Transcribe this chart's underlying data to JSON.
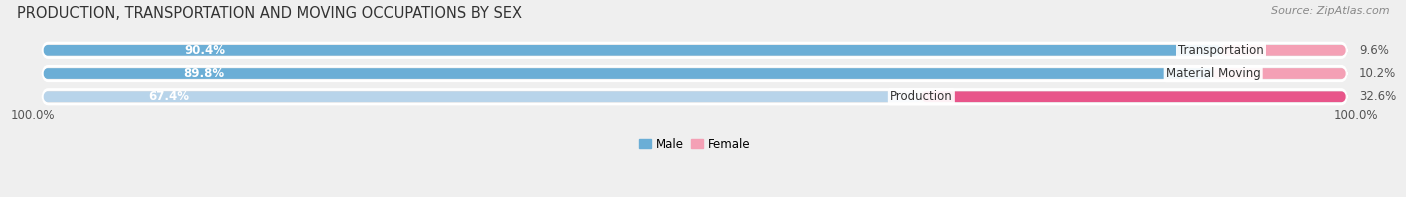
{
  "title": "PRODUCTION, TRANSPORTATION AND MOVING OCCUPATIONS BY SEX",
  "source": "Source: ZipAtlas.com",
  "categories": [
    "Transportation",
    "Material Moving",
    "Production"
  ],
  "male_values": [
    90.4,
    89.8,
    67.4
  ],
  "female_values": [
    9.6,
    10.2,
    32.6
  ],
  "male_color_strong": "#6baed6",
  "male_color_light": "#b8d4ea",
  "female_color_strong": "#f4a0b5",
  "female_color_production": "#e8558a",
  "bar_height": 0.62,
  "background_color": "#efefef",
  "bar_bg_color": "#e0e0e0",
  "legend_male_color": "#6baed6",
  "legend_female_color": "#f4a0b5",
  "x_left_label": "100.0%",
  "x_right_label": "100.0%",
  "title_fontsize": 10.5,
  "label_fontsize": 8.5,
  "cat_fontsize": 8.5,
  "tick_fontsize": 8.5,
  "source_fontsize": 8
}
